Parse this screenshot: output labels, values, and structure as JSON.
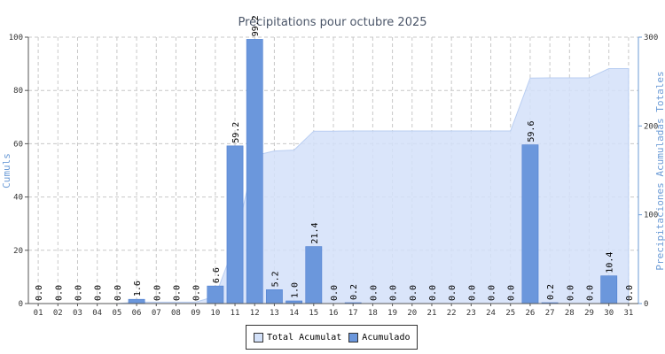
{
  "chart_data": {
    "type": "bar",
    "title": "Précipitations pour octubre 2025",
    "ylabel_left": "Cumuls",
    "ylabel_right": "Precipitaciones Acumuladas Totales",
    "ylim_left": [
      0,
      100
    ],
    "ylim_right": [
      0,
      300
    ],
    "yticks_left": [
      "0",
      "20",
      "40",
      "60",
      "80",
      "100"
    ],
    "yticks_right": [
      "0",
      "100",
      "200",
      "300"
    ],
    "categories": [
      "01",
      "02",
      "03",
      "04",
      "05",
      "06",
      "07",
      "08",
      "09",
      "10",
      "11",
      "12",
      "13",
      "14",
      "15",
      "16",
      "17",
      "18",
      "19",
      "20",
      "21",
      "22",
      "23",
      "24",
      "25",
      "26",
      "27",
      "28",
      "29",
      "30",
      "31"
    ],
    "series": [
      {
        "name": "Acumulado",
        "axis": "left",
        "type": "bar",
        "color": "#6b97dc",
        "values": [
          0.0,
          0.0,
          0.0,
          0.0,
          0.0,
          1.6,
          0.0,
          0.0,
          0.0,
          6.6,
          59.2,
          99.2,
          5.2,
          1.0,
          21.4,
          0.0,
          0.2,
          0.0,
          0.0,
          0.0,
          0.0,
          0.0,
          0.0,
          0.0,
          0.0,
          59.6,
          0.2,
          0.0,
          0.0,
          10.4,
          0.0
        ],
        "labels": [
          "0.0",
          "0.0",
          "0.0",
          "0.0",
          "0.0",
          "1.6",
          "0.0",
          "0.0",
          "0.0",
          "6.6",
          "59.2",
          "99.2",
          "5.2",
          "1.0",
          "21.4",
          "0.0",
          "0.2",
          "0.0",
          "0.0",
          "0.0",
          "0.0",
          "0.0",
          "0.0",
          "0.0",
          "0.0",
          "59.6",
          "0.2",
          "0.0",
          "0.0",
          "10.4",
          "0.0"
        ]
      },
      {
        "name": "Total Acumulat",
        "axis": "right",
        "type": "area",
        "color": "#d3e1f9",
        "values": [
          0.0,
          0.0,
          0.0,
          0.0,
          0.0,
          1.6,
          1.6,
          1.6,
          1.6,
          8.2,
          67.4,
          166.6,
          171.8,
          172.8,
          194.2,
          194.2,
          194.4,
          194.4,
          194.4,
          194.4,
          194.4,
          194.4,
          194.4,
          194.4,
          194.4,
          254.0,
          254.2,
          254.2,
          254.2,
          264.6,
          264.6
        ]
      }
    ],
    "grid": true,
    "legend": "bottom"
  }
}
